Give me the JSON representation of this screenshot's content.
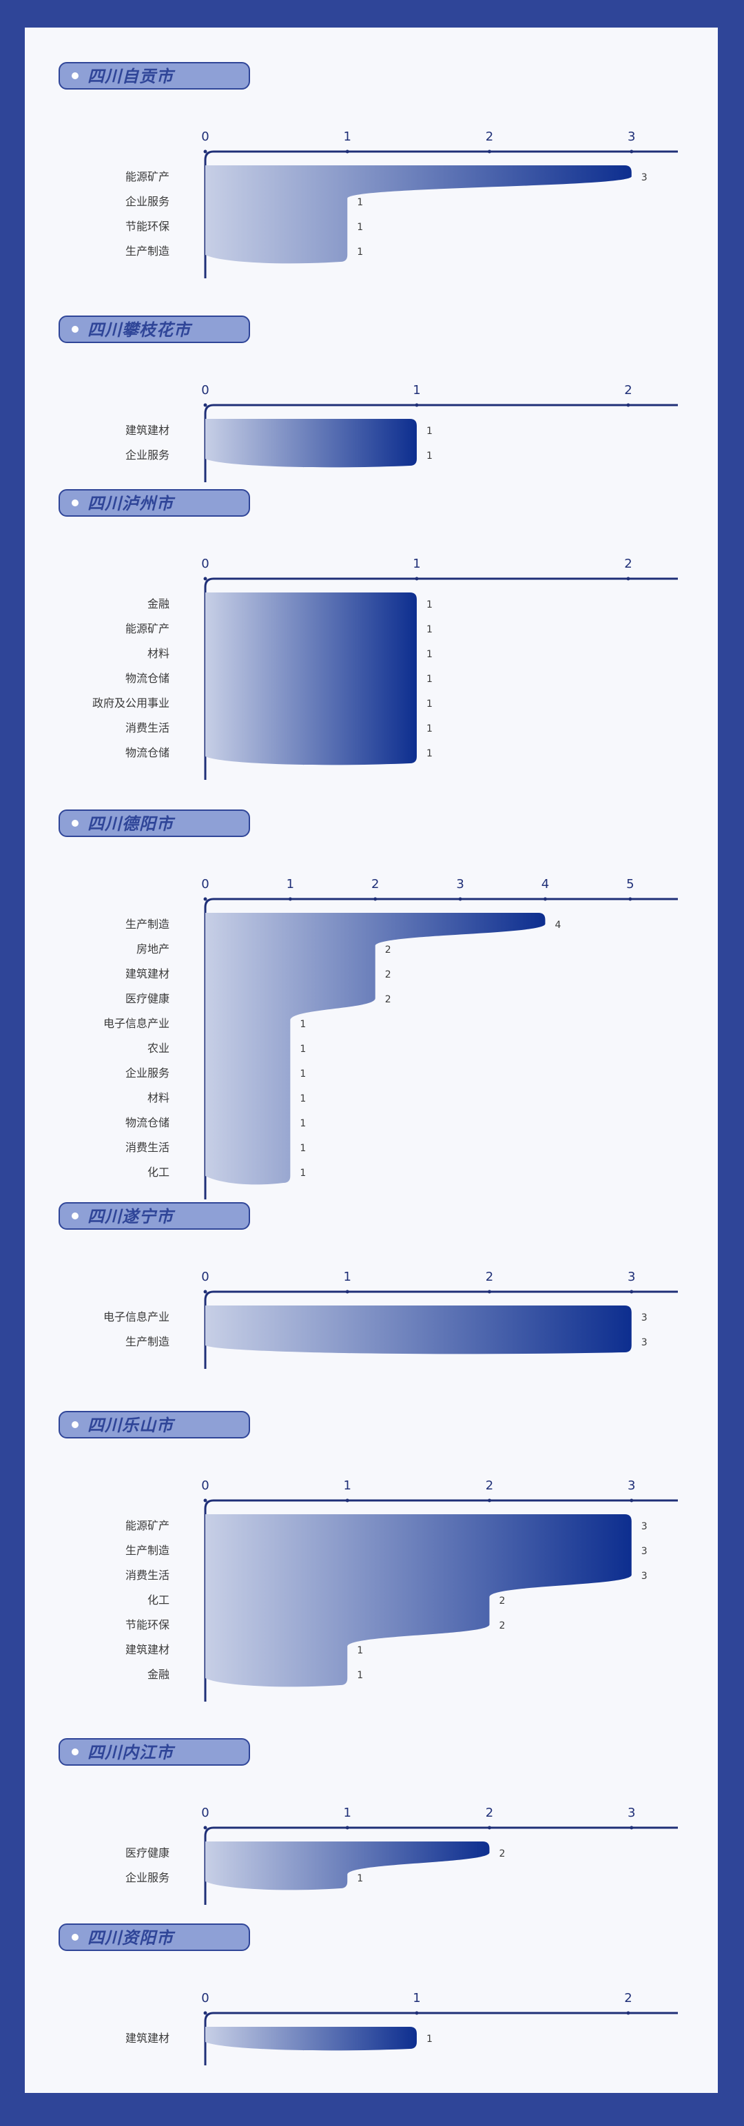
{
  "colors": {
    "frame": "#2f4598",
    "axis": "#1f2f77",
    "bar_light": "#c7cfe6",
    "bar_dark": "#0d2e8f",
    "pill": "#8ea0d6",
    "label": "#3a3a3a"
  },
  "chart_data": [
    {
      "type": "bar",
      "title": "四川自贡市",
      "categories": [
        "能源矿产",
        "企业服务",
        "节能环保",
        "生产制造"
      ],
      "values": [
        3,
        1,
        1,
        1
      ],
      "xticks": [
        "0",
        "1",
        "2",
        "3"
      ],
      "xlim": [
        0,
        3.2
      ]
    },
    {
      "type": "bar",
      "title": "四川攀枝花市",
      "categories": [
        "建筑建材",
        "企业服务"
      ],
      "values": [
        1,
        1
      ],
      "xticks": [
        "0",
        "1",
        "2"
      ],
      "xlim": [
        0,
        2.15
      ]
    },
    {
      "type": "bar",
      "title": "四川泸州市",
      "categories": [
        "金融",
        "能源矿产",
        "材料",
        "物流仓储",
        "政府及公用事业",
        "消费生活",
        "物流仓储"
      ],
      "values": [
        1,
        1,
        1,
        1,
        1,
        1,
        1
      ],
      "xticks": [
        "0",
        "1",
        "2"
      ],
      "xlim": [
        0,
        2.15
      ]
    },
    {
      "type": "bar",
      "title": "四川德阳市",
      "categories": [
        "生产制造",
        "房地产",
        "建筑建材",
        "医疗健康",
        "电子信息产业",
        "农业",
        "企业服务",
        "材料",
        "物流仓储",
        "消费生活",
        "化工"
      ],
      "values": [
        4,
        2,
        2,
        2,
        1,
        1,
        1,
        1,
        1,
        1,
        1
      ],
      "xticks": [
        "0",
        "1",
        "2",
        "3",
        "4",
        "5"
      ],
      "xlim": [
        0,
        5.35
      ]
    },
    {
      "type": "bar",
      "title": "四川遂宁市",
      "categories": [
        "电子信息产业",
        "生产制造"
      ],
      "values": [
        3,
        3
      ],
      "xticks": [
        "0",
        "1",
        "2",
        "3"
      ],
      "xlim": [
        0,
        3.2
      ]
    },
    {
      "type": "bar",
      "title": "四川乐山市",
      "categories": [
        "能源矿产",
        "生产制造",
        "消费生活",
        "化工",
        "节能环保",
        "建筑建材",
        "金融"
      ],
      "values": [
        3,
        3,
        3,
        2,
        2,
        1,
        1
      ],
      "xticks": [
        "0",
        "1",
        "2",
        "3"
      ],
      "xlim": [
        0,
        3.2
      ]
    },
    {
      "type": "bar",
      "title": "四川内江市",
      "categories": [
        "医疗健康",
        "企业服务"
      ],
      "values": [
        2,
        1
      ],
      "xticks": [
        "0",
        "1",
        "2",
        "3"
      ],
      "xlim": [
        0,
        3.2
      ]
    },
    {
      "type": "bar",
      "title": "四川资阳市",
      "categories": [
        "建筑建材"
      ],
      "values": [
        1
      ],
      "xticks": [
        "0",
        "1",
        "2"
      ],
      "xlim": [
        0,
        2.15
      ]
    }
  ]
}
